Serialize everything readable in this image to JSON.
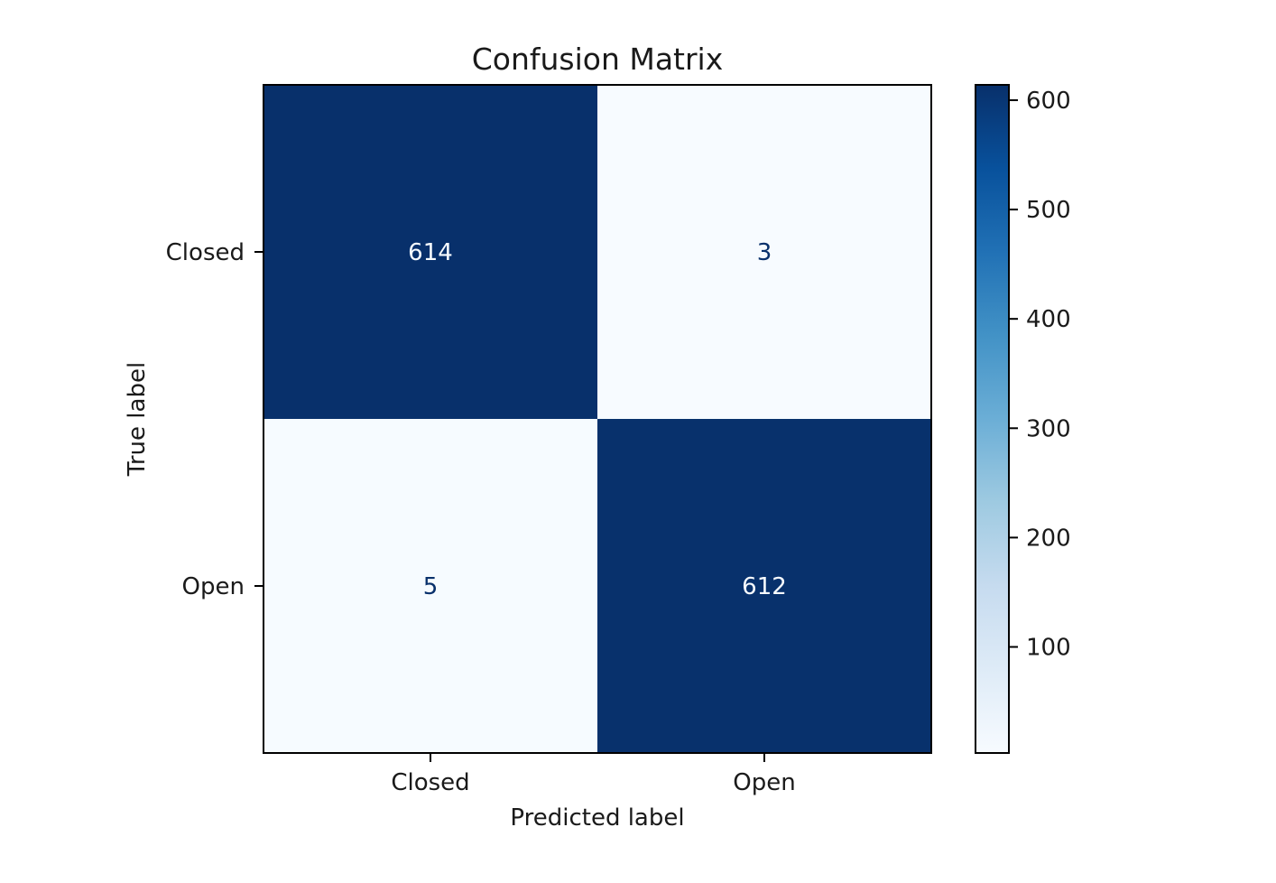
{
  "chart_data": {
    "type": "heatmap",
    "title": "Confusion Matrix",
    "xlabel": "Predicted label",
    "ylabel": "True label",
    "x_categories": [
      "Closed",
      "Open"
    ],
    "y_categories": [
      "Closed",
      "Open"
    ],
    "values": [
      [
        614,
        3
      ],
      [
        5,
        612
      ]
    ],
    "colormap": "Blues",
    "colorbar": {
      "range": [
        3,
        614
      ],
      "ticks": [
        100,
        200,
        300,
        400,
        500,
        600
      ]
    },
    "grid": false
  }
}
